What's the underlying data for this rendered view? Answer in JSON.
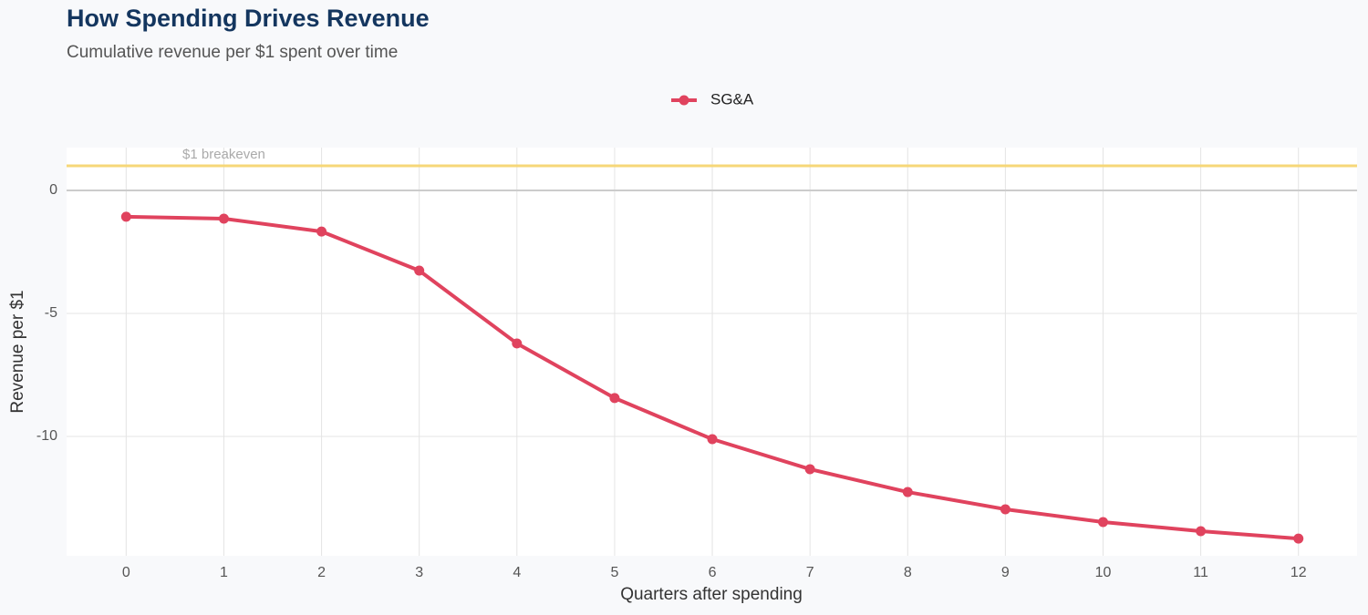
{
  "chart_data": {
    "type": "line",
    "title": "How Spending Drives Revenue",
    "subtitle": "Cumulative revenue per $1 spent over time",
    "x_label": "Quarters after spending",
    "y_label": "Revenue per $1",
    "x": [
      0,
      1,
      2,
      3,
      4,
      5,
      6,
      7,
      8,
      9,
      10,
      11,
      12
    ],
    "series": [
      {
        "name": "SG&A",
        "color": "#e0435e",
        "values": [
          -1.07,
          -1.15,
          -1.67,
          -3.26,
          -6.22,
          -8.44,
          -10.11,
          -11.33,
          -12.26,
          -12.96,
          -13.48,
          -13.85,
          -14.15
        ]
      }
    ],
    "xlim": [
      -0.61,
      12.6
    ],
    "ylim": [
      -14.85,
      1.74
    ],
    "xticks": [
      0,
      1,
      2,
      3,
      4,
      5,
      6,
      7,
      8,
      9,
      10,
      11,
      12
    ],
    "yticks": [
      -10,
      -5,
      0
    ],
    "grid": true,
    "legend": "top",
    "reference_line": {
      "value": 1,
      "label": "$1 breakeven",
      "color": "#f6d778"
    }
  }
}
